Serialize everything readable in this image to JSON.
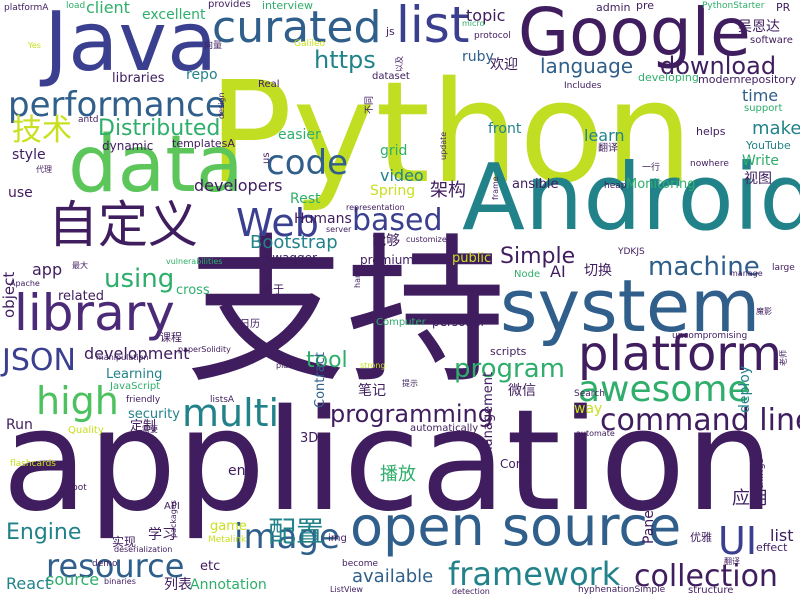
{
  "palette": {
    "background": "#ffffff",
    "dark_purple": "#3f1d5e",
    "indigo": "#3b3f8f",
    "blue": "#2f5f8a",
    "teal": "#22828a",
    "green": "#2fae6b",
    "lime": "#9bd93c",
    "yellow_green": "#c9e020"
  },
  "words": {
    "python": "Python",
    "application": "application",
    "zhichi": "支持",
    "android": "Android",
    "java": "Java",
    "google": "Google",
    "data": "data",
    "system": "system",
    "platform": "platform",
    "curated": "curated",
    "list_top": "list",
    "performance": "performance",
    "library": "library",
    "open_source": "open source",
    "zidingyi": "自定义",
    "web": "Web",
    "code": "code",
    "ui": "UI",
    "awesome": "awesome",
    "high": "high",
    "multi": "multi",
    "command_line": "command line",
    "programming": "programming",
    "image": "image",
    "resource": "resource",
    "framework": "framework",
    "collection": "collection",
    "https": "https",
    "language": "language",
    "download": "download",
    "machine": "machine",
    "json": "JSON",
    "jishu": "技术",
    "distributed": "Distributed",
    "based": "based",
    "using": "using",
    "program": "program",
    "simple": "Simple",
    "bootstrap": "Bootstrap",
    "developers": "developers",
    "development": "development",
    "tool": "tool",
    "peizhi": "配置",
    "engine": "Engine",
    "available": "available",
    "source": "source",
    "react": "React",
    "annotation": "Annotation",
    "jiagou": "架构",
    "nenggou": "能够",
    "bofang": "播放",
    "yingyong": "应用",
    "list_right": "list",
    "make": "make",
    "time": "time",
    "learn": "learn",
    "grid": "grid",
    "video": "video",
    "spring": "Spring",
    "rest": "Rest",
    "humans": "Humans",
    "front": "front",
    "ansible": "ansible",
    "monitoring": "Monitoring",
    "write": "Write",
    "youtube": "YouTube",
    "shitu": "视图",
    "topic": "topic",
    "ruby": "ruby",
    "huanying": "欢迎",
    "client": "client",
    "excellent": "excellent",
    "repo": "repo",
    "libraries": "libraries",
    "dynamic": "dynamic",
    "style": "style",
    "use": "use",
    "object": "object",
    "app": "app",
    "related": "related",
    "cross": "cross",
    "security": "security",
    "learning": "Learning",
    "run": "Run",
    "end": "end",
    "panel": "Panel",
    "deploy": "deploy",
    "ai": "AI",
    "qiehuan": "切换",
    "management": "management",
    "contract": "Contract",
    "public": "public",
    "personal": "personal",
    "scripts": "scripts",
    "way": "way",
    "things": "things",
    "effect": "effect",
    "three_d": "3D",
    "core": "Core",
    "game": "game",
    "etc": "etc",
    "xuexi": "学习",
    "liebiao": "列表",
    "shixian": "实现",
    "dingzhi": "定制",
    "weixin": "微信",
    "biji": "笔记",
    "premium": "premium",
    "swagger": "swagger",
    "easier": "easier",
    "us": "us",
    "templatesA": "templatesA",
    "wuenda": "吴恩达",
    "helps": "helps",
    "developing": "developing",
    "modernrepository": "modernrepository",
    "pre": "pre",
    "admin": "admin",
    "provides": "provides",
    "interview": "interview",
    "load": "load",
    "platformA": "platformA",
    "js": "js",
    "micro": "micro",
    "protocol": "protocol",
    "pythonstarter": "PythonStarter",
    "pr": "PR",
    "software": "software",
    "support": "support",
    "real": "Real",
    "includes": "Includes",
    "dataset": "dataset",
    "update": "update",
    "antd": "antd",
    "computer": "Computer",
    "quality": "Quality",
    "javascript": "JavaScript",
    "ydkjs": "YDKJS",
    "node": "Node",
    "search": "Search",
    "flashcards": "flashcards",
    "listsA": "listsA",
    "api": "API",
    "img": "img",
    "become": "become",
    "listview": "ListView",
    "detection": "detection",
    "hyphenation": "hyphenationSimple",
    "structure": "structure",
    "youya": "优雅",
    "fanyi": "翻译",
    "yixing": "一行",
    "heap": "heap",
    "frame": "frame",
    "nowhere": "nowhere",
    "galileo": "Galileo",
    "xiangliang": "向量",
    "kecheng": "课程",
    "rili": "日历",
    "jiyu": "基于",
    "daili": "代理",
    "zuida": "最大",
    "apache": "Apache",
    "manipulation": "manipulation",
    "paper": "paperSolidity",
    "friendly": "friendly",
    "xuyao": "需要",
    "bot": "bot",
    "demo": "demo",
    "binaries": "binaries",
    "packages": "packages",
    "deserialization": "deserialization",
    "metalink": "Metalink",
    "uncompromising": "uncompromising",
    "automate": "automate",
    "automatically": "automatically",
    "plain": "plain",
    "strong": "strong",
    "representation": "representation",
    "server": "server",
    "customized": "customized",
    "hard": "hard",
    "vulnerabilities": "vulnerabilities",
    "manage": "manage",
    "large": "large",
    "tishi": "提示",
    "yes": "Yes",
    "design": "design",
    "butong": "不同",
    "laoshi": "老师",
    "yiqi": "以及",
    "moying": "魔影",
    "fanyi_small": "翻译"
  }
}
